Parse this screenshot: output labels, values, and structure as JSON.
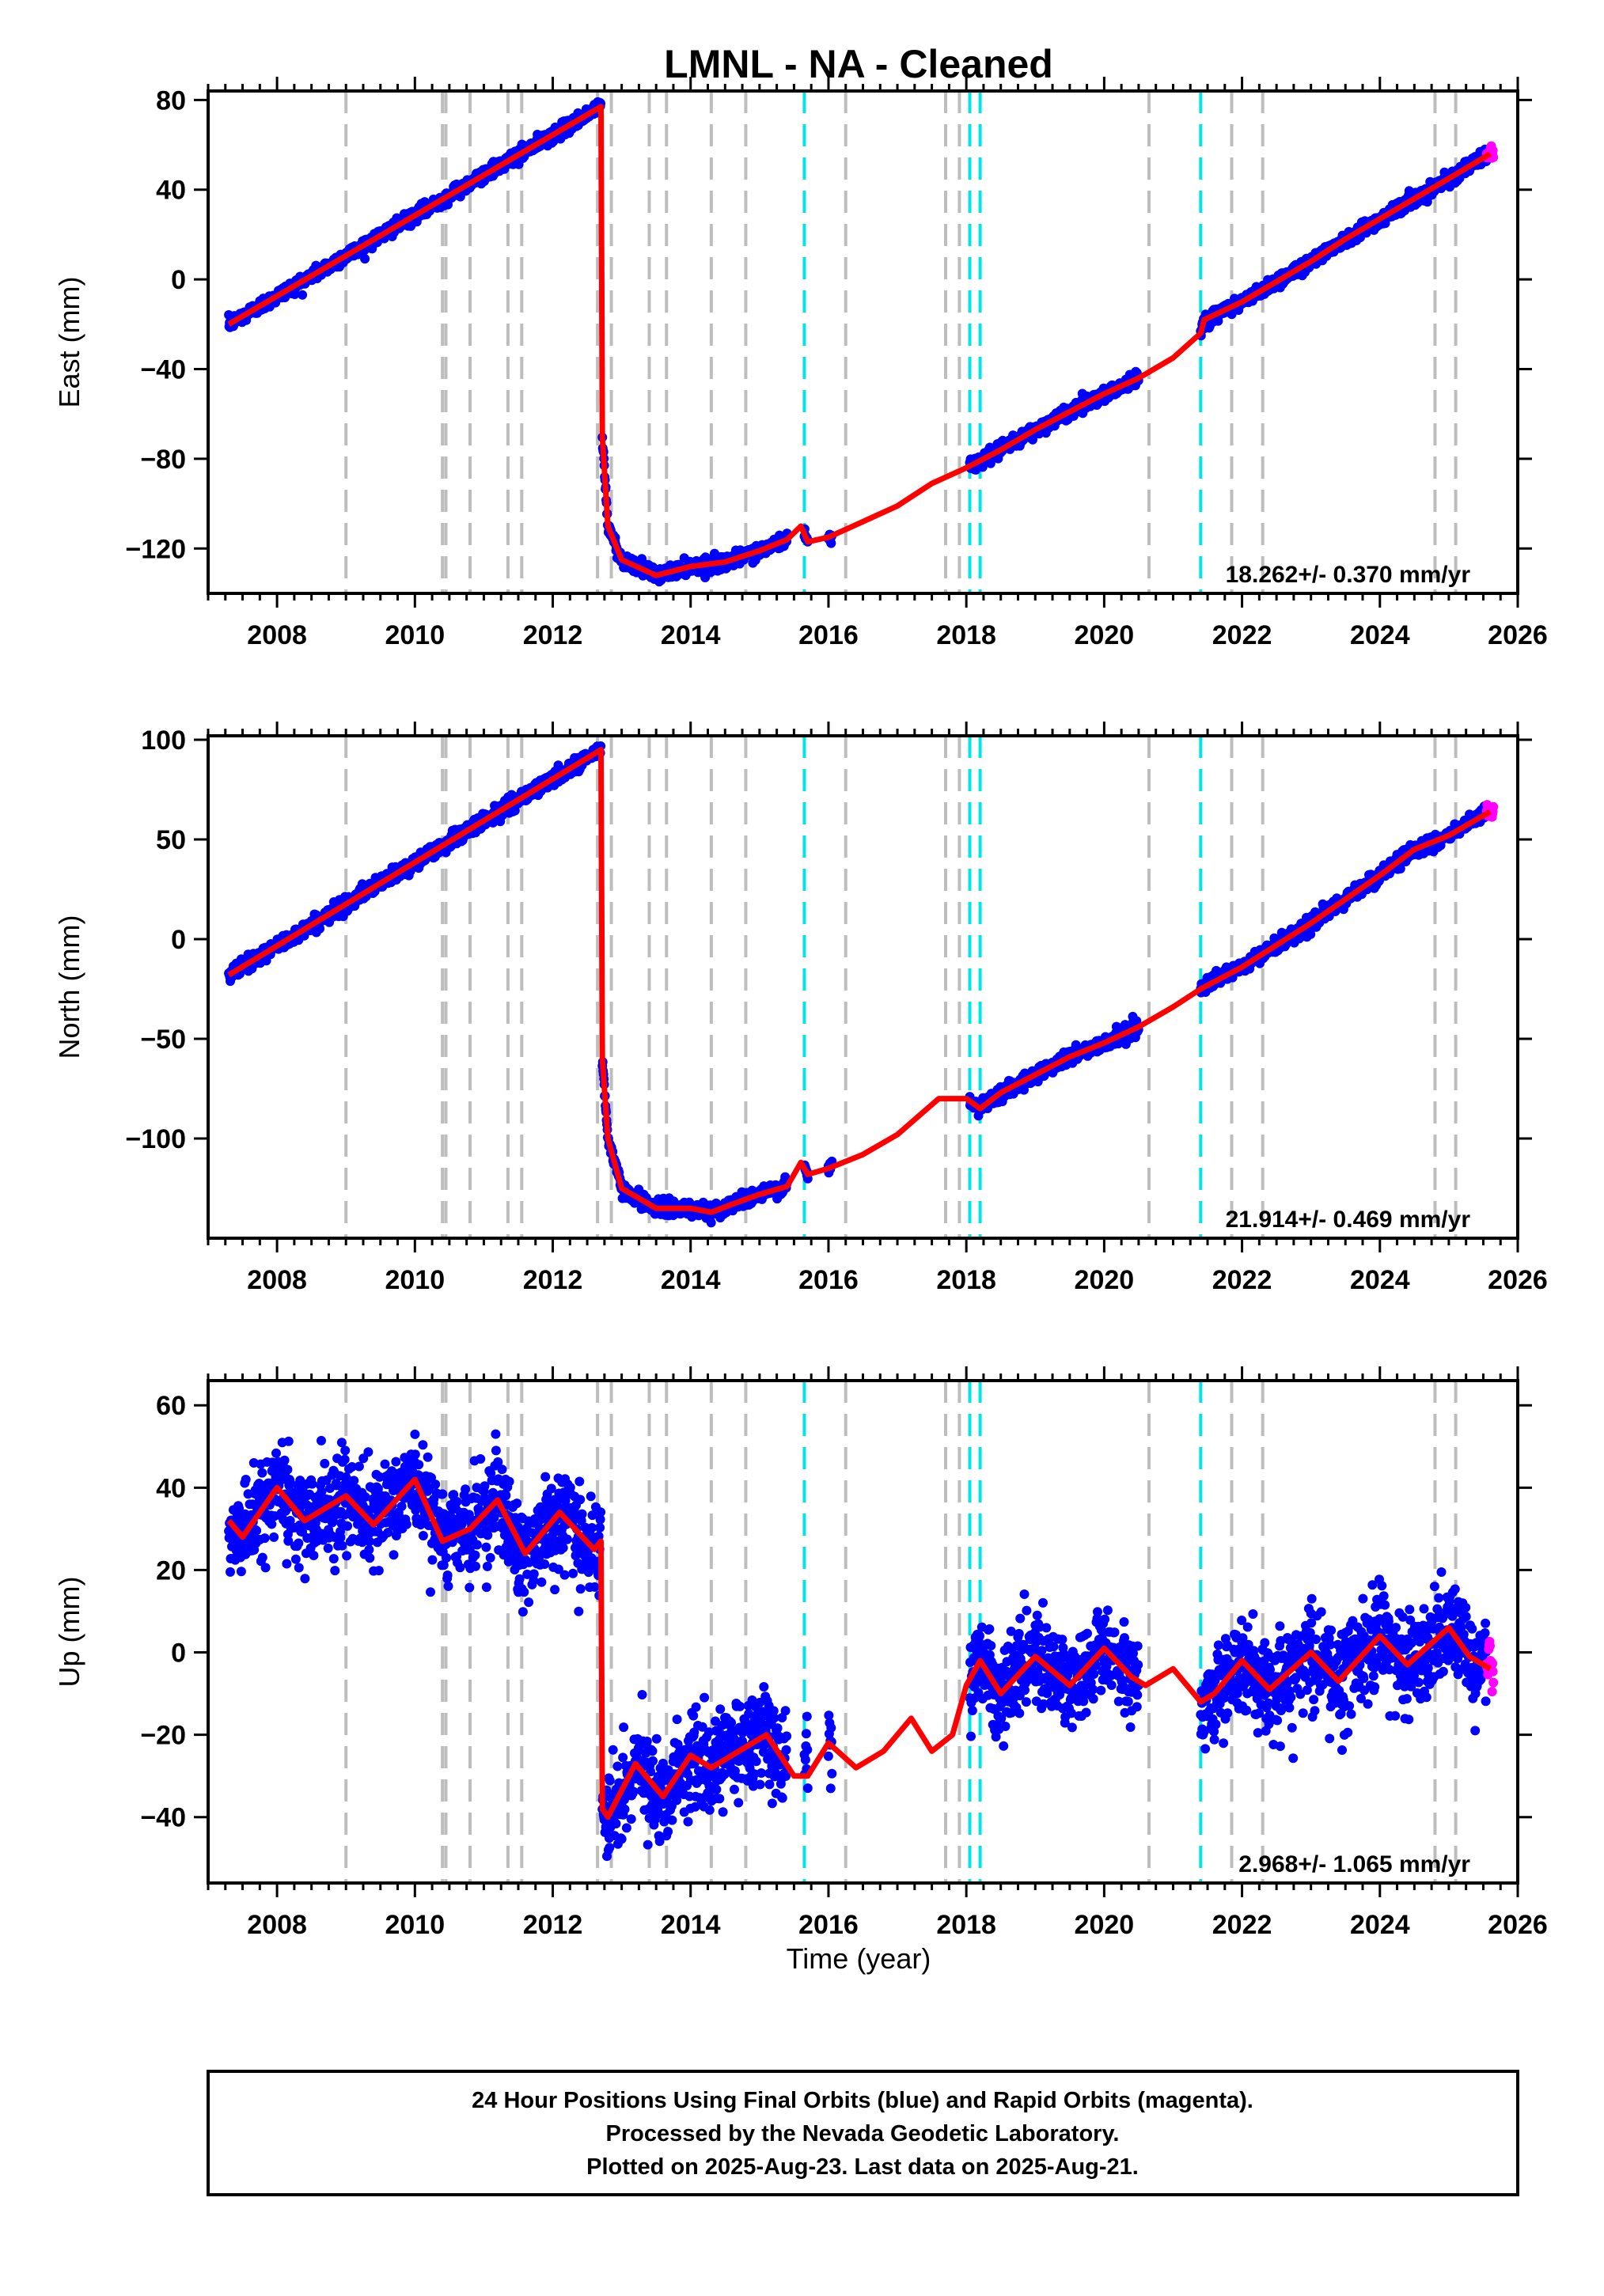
{
  "chart_data": {
    "type": "scatter",
    "title": "LMNL  - NA - Cleaned",
    "xlabel": "Time (year)",
    "xlim": [
      2007.0,
      2026.0
    ],
    "x_ticks": [
      2008,
      2010,
      2012,
      2014,
      2016,
      2018,
      2020,
      2022,
      2024,
      2026
    ],
    "legend": "",
    "series_colors": {
      "final_orbits": "#0000ff",
      "rapid_orbits": "#ff00ff",
      "model": "#ff0000"
    },
    "grey_lines": [
      2009.0,
      2010.4,
      2010.45,
      2010.8,
      2011.35,
      2011.55,
      2012.65,
      2012.85,
      2013.4,
      2013.65,
      2014.3,
      2014.8,
      2016.25,
      2017.7,
      2017.9,
      2020.65,
      2021.85,
      2022.3,
      2024.8,
      2025.1
    ],
    "cyan_lines": [
      2015.65,
      2018.05,
      2018.2,
      2021.4
    ],
    "panels": [
      {
        "component": "east",
        "ylabel": "East (mm)",
        "ylim": [
          -140,
          84
        ],
        "y_ticks": [
          80,
          40,
          0,
          -40,
          -80,
          -120
        ],
        "rate_text": "18.262+/- 0.370 mm/yr",
        "scatter_sd": 1.5,
        "model": [
          [
            2007.3,
            -20
          ],
          [
            2012.7,
            77
          ],
          [
            2012.72,
            -70
          ],
          [
            2012.8,
            -110
          ],
          [
            2013.0,
            -125
          ],
          [
            2013.5,
            -132
          ],
          [
            2014.0,
            -128
          ],
          [
            2014.5,
            -126
          ],
          [
            2015.0,
            -121
          ],
          [
            2015.4,
            -116
          ],
          [
            2015.6,
            -110
          ],
          [
            2015.7,
            -117
          ],
          [
            2016.0,
            -115
          ],
          [
            2016.5,
            -108
          ],
          [
            2017.0,
            -101
          ],
          [
            2017.5,
            -91
          ],
          [
            2018.0,
            -84
          ],
          [
            2018.5,
            -76
          ],
          [
            2019.0,
            -67
          ],
          [
            2019.5,
            -59
          ],
          [
            2020.0,
            -51
          ],
          [
            2020.5,
            -44
          ],
          [
            2021.0,
            -35
          ],
          [
            2021.4,
            -24
          ],
          [
            2021.45,
            -18
          ],
          [
            2022.0,
            -10
          ],
          [
            2022.5,
            -1
          ],
          [
            2023.0,
            8
          ],
          [
            2023.5,
            18
          ],
          [
            2024.0,
            27
          ],
          [
            2024.5,
            36
          ],
          [
            2025.0,
            45
          ],
          [
            2025.6,
            56
          ]
        ],
        "data_ranges": [
          [
            2007.3,
            2012.7
          ],
          [
            2012.72,
            2015.4
          ],
          [
            2015.65,
            2015.7
          ],
          [
            2016.0,
            2016.05
          ],
          [
            2018.05,
            2020.5
          ],
          [
            2021.4,
            2025.55
          ]
        ],
        "rapid_range": [
          2025.55,
          2025.65
        ]
      },
      {
        "component": "north",
        "ylabel": "North (mm)",
        "ylim": [
          -150,
          102
        ],
        "y_ticks": [
          100,
          50,
          0,
          -50,
          -100
        ],
        "rate_text": "21.914+/- 0.469 mm/yr",
        "scatter_sd": 1.8,
        "model": [
          [
            2007.3,
            -18
          ],
          [
            2012.7,
            95
          ],
          [
            2012.72,
            -60
          ],
          [
            2012.8,
            -100
          ],
          [
            2013.0,
            -125
          ],
          [
            2013.5,
            -135
          ],
          [
            2014.0,
            -135
          ],
          [
            2014.3,
            -137
          ],
          [
            2014.6,
            -133
          ],
          [
            2015.0,
            -128
          ],
          [
            2015.4,
            -124
          ],
          [
            2015.6,
            -112
          ],
          [
            2015.7,
            -118
          ],
          [
            2016.0,
            -115
          ],
          [
            2016.5,
            -108
          ],
          [
            2017.0,
            -98
          ],
          [
            2017.6,
            -80
          ],
          [
            2018.0,
            -80
          ],
          [
            2018.2,
            -85
          ],
          [
            2018.5,
            -77
          ],
          [
            2019.0,
            -68
          ],
          [
            2019.5,
            -59
          ],
          [
            2020.0,
            -52
          ],
          [
            2020.5,
            -44
          ],
          [
            2021.0,
            -34
          ],
          [
            2021.4,
            -25
          ],
          [
            2022.0,
            -14
          ],
          [
            2022.5,
            -3
          ],
          [
            2023.0,
            8
          ],
          [
            2023.5,
            20
          ],
          [
            2024.0,
            32
          ],
          [
            2024.5,
            45
          ],
          [
            2025.0,
            52
          ],
          [
            2025.6,
            64
          ]
        ],
        "data_ranges": [
          [
            2007.3,
            2012.7
          ],
          [
            2012.72,
            2015.4
          ],
          [
            2015.65,
            2015.7
          ],
          [
            2016.0,
            2016.05
          ],
          [
            2018.05,
            2020.5
          ],
          [
            2021.4,
            2025.55
          ]
        ],
        "rapid_range": [
          2025.55,
          2025.65
        ]
      },
      {
        "component": "up",
        "ylabel": "Up (mm)",
        "ylim": [
          -56,
          66
        ],
        "y_ticks": [
          60,
          40,
          20,
          0,
          -20,
          -40
        ],
        "rate_text": "2.968+/- 1.065 mm/yr",
        "scatter_sd": 5.5,
        "model": [
          [
            2007.3,
            32
          ],
          [
            2007.5,
            28
          ],
          [
            2008.0,
            40
          ],
          [
            2008.4,
            32
          ],
          [
            2009.0,
            38
          ],
          [
            2009.4,
            31
          ],
          [
            2010.0,
            42
          ],
          [
            2010.4,
            27
          ],
          [
            2010.8,
            30
          ],
          [
            2011.2,
            37
          ],
          [
            2011.6,
            24
          ],
          [
            2012.1,
            34
          ],
          [
            2012.6,
            25
          ],
          [
            2012.7,
            27
          ],
          [
            2012.72,
            -38
          ],
          [
            2012.8,
            -40
          ],
          [
            2013.2,
            -27
          ],
          [
            2013.6,
            -35
          ],
          [
            2014.0,
            -25
          ],
          [
            2014.3,
            -28
          ],
          [
            2014.8,
            -23
          ],
          [
            2015.1,
            -20
          ],
          [
            2015.5,
            -30
          ],
          [
            2015.7,
            -30
          ],
          [
            2016.0,
            -22
          ],
          [
            2016.4,
            -28
          ],
          [
            2016.8,
            -24
          ],
          [
            2017.2,
            -16
          ],
          [
            2017.5,
            -24
          ],
          [
            2017.8,
            -20
          ],
          [
            2018.0,
            -8
          ],
          [
            2018.2,
            -2
          ],
          [
            2018.5,
            -10
          ],
          [
            2019.0,
            -1
          ],
          [
            2019.5,
            -8
          ],
          [
            2020.0,
            1
          ],
          [
            2020.4,
            -6
          ],
          [
            2020.6,
            -8
          ],
          [
            2021.0,
            -4
          ],
          [
            2021.4,
            -12
          ],
          [
            2021.6,
            -10
          ],
          [
            2022.0,
            -2
          ],
          [
            2022.4,
            -9
          ],
          [
            2023.0,
            0
          ],
          [
            2023.4,
            -7
          ],
          [
            2024.0,
            4
          ],
          [
            2024.4,
            -3
          ],
          [
            2025.0,
            6
          ],
          [
            2025.3,
            -1
          ],
          [
            2025.6,
            -4
          ]
        ],
        "data_ranges": [
          [
            2007.3,
            2012.7
          ],
          [
            2012.72,
            2015.4
          ],
          [
            2015.65,
            2015.7
          ],
          [
            2016.0,
            2016.05
          ],
          [
            2018.05,
            2020.5
          ],
          [
            2021.4,
            2025.55
          ]
        ],
        "rapid_range": [
          2025.55,
          2025.65
        ]
      }
    ]
  },
  "footer": {
    "line1": "24 Hour Positions Using Final Orbits (blue) and Rapid Orbits (magenta).",
    "line2": "Processed by the Nevada Geodetic Laboratory.",
    "line3": "Plotted on 2025-Aug-23. Last data on 2025-Aug-21."
  }
}
